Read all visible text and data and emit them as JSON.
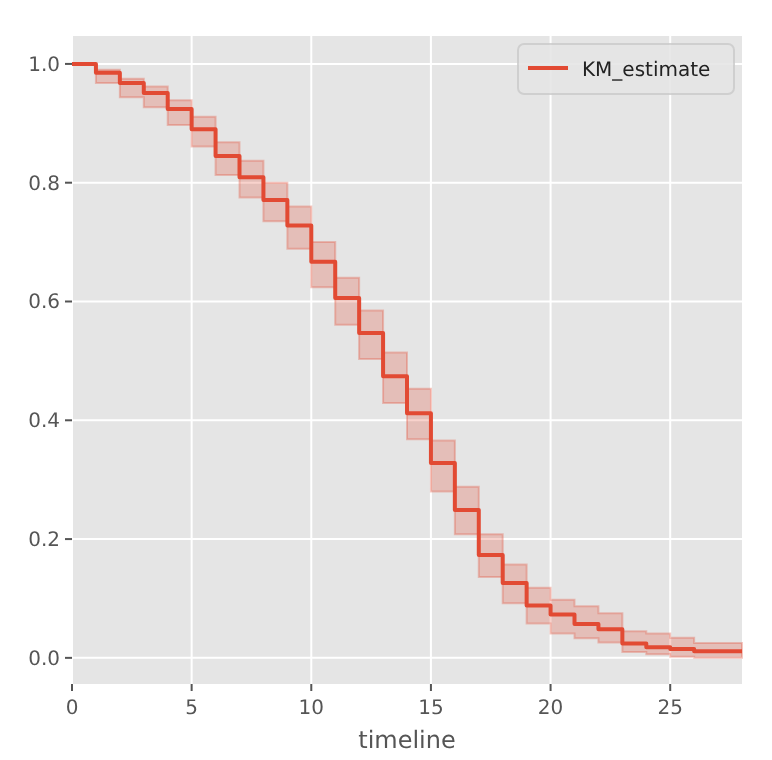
{
  "chart_data": {
    "type": "step",
    "xlabel": "timeline",
    "x": [
      0,
      1,
      2,
      3,
      4,
      5,
      6,
      7,
      8,
      9,
      10,
      11,
      12,
      13,
      14,
      15,
      16,
      17,
      18,
      19,
      20,
      21,
      22,
      23,
      24,
      25,
      26,
      27,
      28
    ],
    "series": [
      {
        "name": "KM_estimate",
        "color": "#e24a33",
        "values": [
          1.0,
          0.985,
          0.968,
          0.951,
          0.924,
          0.89,
          0.845,
          0.809,
          0.771,
          0.728,
          0.667,
          0.606,
          0.547,
          0.474,
          0.412,
          0.328,
          0.249,
          0.173,
          0.126,
          0.088,
          0.073,
          0.057,
          0.048,
          0.024,
          0.018,
          0.015,
          0.011,
          0.011,
          0.011
        ],
        "lower": [
          1.0,
          0.968,
          0.944,
          0.927,
          0.897,
          0.861,
          0.813,
          0.775,
          0.735,
          0.689,
          0.624,
          0.561,
          0.503,
          0.429,
          0.368,
          0.28,
          0.208,
          0.136,
          0.092,
          0.058,
          0.041,
          0.033,
          0.026,
          0.01,
          0.006,
          0.002,
          0.0,
          0.0,
          0.0
        ],
        "upper": [
          1.0,
          0.99,
          0.975,
          0.962,
          0.939,
          0.911,
          0.868,
          0.837,
          0.8,
          0.76,
          0.7,
          0.64,
          0.585,
          0.514,
          0.453,
          0.366,
          0.288,
          0.208,
          0.157,
          0.118,
          0.098,
          0.087,
          0.075,
          0.045,
          0.041,
          0.034,
          0.025,
          0.025,
          0.025
        ]
      }
    ],
    "xlim": [
      0,
      28
    ],
    "xticks": [
      0,
      5,
      10,
      15,
      20,
      25
    ],
    "ylim": [
      -0.044,
      1.047
    ],
    "yticks": [
      {
        "value": 0,
        "label": "0.0"
      },
      {
        "value": 0.2,
        "label": "0.2"
      },
      {
        "value": 0.4,
        "label": "0.4"
      },
      {
        "value": 0.6,
        "label": "0.6"
      },
      {
        "value": 0.8,
        "label": "0.8"
      },
      {
        "value": 1,
        "label": "1.0"
      }
    ],
    "grid": true,
    "legend": "top right"
  }
}
